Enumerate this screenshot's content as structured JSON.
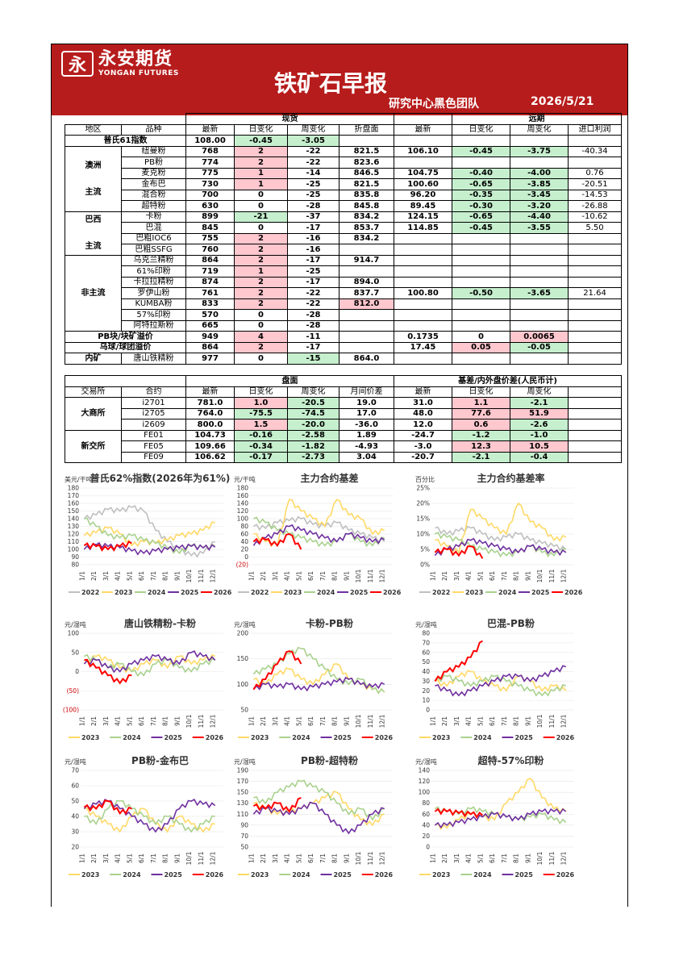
{
  "header": {
    "logo_mark": "永",
    "logo_cn": "永安期货",
    "logo_en": "YONGAN FUTURES",
    "title": "铁矿石早报",
    "team": "研究中心黑色团队",
    "date": "2026/5/21"
  },
  "spot": {
    "sec_spot": "现货",
    "sec_fwd": "远期",
    "headers": [
      "地区",
      "品种",
      "最新",
      "日变化",
      "周变化",
      "折盘面",
      "最新",
      "日变化",
      "周变化",
      "进口利润"
    ],
    "platts": {
      "label": "普氏61指数",
      "latest": "108.00",
      "d": "-0.45",
      "w": "-3.05"
    },
    "aus_label": "澳洲",
    "aus_label2": "主流",
    "brz_label": "巴西",
    "brz_label2": "主流",
    "non_label": "非主流",
    "aus": [
      [
        "纽曼粉",
        "768",
        "2",
        "-22",
        "821.5",
        "106.10",
        "-0.45",
        "-3.75",
        "-40.34"
      ],
      [
        "PB粉",
        "774",
        "2",
        "-22",
        "823.6",
        "",
        "",
        "",
        ""
      ],
      [
        "麦克粉",
        "775",
        "1",
        "-14",
        "846.5",
        "104.75",
        "-0.40",
        "-4.00",
        "0.76"
      ],
      [
        "金布巴",
        "730",
        "1",
        "-25",
        "821.5",
        "100.60",
        "-0.65",
        "-3.85",
        "-20.51"
      ],
      [
        "混合粉",
        "700",
        "0",
        "-25",
        "835.8",
        "96.20",
        "-0.35",
        "-3.45",
        "-14.53"
      ],
      [
        "超特粉",
        "630",
        "0",
        "-28",
        "845.8",
        "89.45",
        "-0.30",
        "-3.20",
        "-26.88"
      ]
    ],
    "brz": [
      [
        "卡粉",
        "899",
        "-21",
        "-37",
        "834.2",
        "124.15",
        "-0.65",
        "-4.40",
        "-10.62"
      ],
      [
        "巴混",
        "845",
        "0",
        "-17",
        "853.7",
        "114.85",
        "-0.45",
        "-3.55",
        "5.50"
      ],
      [
        "巴粗IOC6",
        "755",
        "2",
        "-16",
        "834.2",
        "",
        "",
        "",
        ""
      ],
      [
        "巴粗SSFG",
        "760",
        "2",
        "-16",
        "",
        "",
        "",
        "",
        ""
      ]
    ],
    "non": [
      [
        "乌克兰精粉",
        "864",
        "2",
        "-17",
        "914.7",
        "",
        "",
        "",
        ""
      ],
      [
        "61%印粉",
        "719",
        "1",
        "-25",
        "",
        "",
        "",
        "",
        ""
      ],
      [
        "卡拉拉精粉",
        "874",
        "2",
        "-17",
        "894.0",
        "",
        "",
        "",
        ""
      ],
      [
        "罗伊山粉",
        "761",
        "2",
        "-22",
        "837.7",
        "100.80",
        "-0.50",
        "-3.65",
        "21.64"
      ],
      [
        "KUMBA粉",
        "833",
        "2",
        "-22",
        "812.0",
        "",
        "",
        "",
        ""
      ],
      [
        "57%印粉",
        "570",
        "0",
        "-28",
        "",
        "",
        "",
        "",
        ""
      ],
      [
        "阿特拉斯粉",
        "665",
        "0",
        "-28",
        "",
        "",
        "",
        "",
        ""
      ]
    ],
    "premium1": {
      "label": "PB块/块矿溢价",
      "v": "949",
      "d": "4",
      "w": "-11",
      "f1": "0.1735",
      "f2": "0",
      "f3": "0.0065"
    },
    "premium2": {
      "label": "乌球/球团溢价",
      "v": "864",
      "d": "2",
      "w": "-17",
      "f1": "17.45",
      "f2": "0.05",
      "f3": "-0.05"
    },
    "domestic": {
      "label": "内矿",
      "name": "唐山铁精粉",
      "v": "977",
      "d": "0",
      "w": "-15",
      "f": "864.0"
    }
  },
  "futures": {
    "sec_disk": "盘面",
    "sec_basis": "基差/内外盘价差(人民币计)",
    "headers": [
      "交易所",
      "合约",
      "最新",
      "日变化",
      "周变化",
      "月间价差",
      "最新",
      "日变化",
      "周变化"
    ],
    "dce_label": "大商所",
    "sgx_label": "新交所",
    "dce": [
      [
        "i2701",
        "781.0",
        "1.0",
        "-20.5",
        "19.0",
        "31.0",
        "1.1",
        "-2.1"
      ],
      [
        "i2705",
        "764.0",
        "-75.5",
        "-74.5",
        "17.0",
        "48.0",
        "77.6",
        "51.9"
      ],
      [
        "i2609",
        "800.0",
        "1.5",
        "-20.0",
        "-36.0",
        "12.0",
        "0.6",
        "-2.6"
      ]
    ],
    "sgx": [
      [
        "FE01",
        "104.73",
        "-0.16",
        "-2.58",
        "1.89",
        "-24.7",
        "-1.2",
        "-1.0"
      ],
      [
        "FE05",
        "109.66",
        "-0.34",
        "-1.82",
        "-4.93",
        "-3.0",
        "12.3",
        "10.5"
      ],
      [
        "FE09",
        "106.62",
        "-0.17",
        "-2.73",
        "3.04",
        "-20.7",
        "-2.1",
        "-0.4"
      ]
    ]
  },
  "colors": {
    "2022": "#bfbfbf",
    "2023": "#ffd966",
    "2024": "#a9d18e",
    "2025": "#7030a0",
    "2026": "#ff0000"
  },
  "months": [
    "1/1",
    "2/1",
    "3/1",
    "4/1",
    "5/1",
    "6/1",
    "7/1",
    "8/1",
    "9/1",
    "10/1",
    "11/1",
    "12/1"
  ],
  "charts": [
    {
      "title": "普氏62%指数(2026年为61%)",
      "unit": "美元/干吨",
      "yticks": [
        "180",
        "170",
        "160",
        "150",
        "140",
        "130",
        "120",
        "110",
        "100",
        "90",
        "80"
      ],
      "ymin": 80,
      "ymax": 180,
      "legend": [
        "2022",
        "2023",
        "2024",
        "2025",
        "2026"
      ],
      "series": {
        "2022": [
          140,
          145,
          152,
          150,
          155,
          150,
          125,
          110,
          100,
          92,
          95,
          110
        ],
        "2023": [
          118,
          122,
          128,
          120,
          105,
          110,
          108,
          112,
          118,
          120,
          125,
          135
        ],
        "2024": [
          140,
          130,
          118,
          115,
          118,
          112,
          108,
          102,
          95,
          105,
          102,
          104
        ],
        "2025": [
          100,
          106,
          104,
          102,
          98,
          95,
          98,
          100,
          102,
          104,
          102,
          103
        ],
        "2026": [
          105,
          104,
          100,
          104,
          108
        ]
      }
    },
    {
      "title": "主力合约基差",
      "unit": "元/干吨",
      "yticks": [
        "180",
        "160",
        "140",
        "120",
        "100",
        "80",
        "60",
        "40",
        "20",
        "0",
        "(20)"
      ],
      "ymin": -20,
      "ymax": 180,
      "legend": [
        "2022",
        "2023",
        "2024",
        "2025",
        "2026"
      ],
      "series": {
        "2022": [
          80,
          75,
          90,
          95,
          100,
          85,
          80,
          90,
          70,
          60,
          50,
          40
        ],
        "2023": [
          60,
          40,
          30,
          150,
          120,
          100,
          80,
          150,
          110,
          100,
          60,
          70
        ],
        "2024": [
          100,
          90,
          70,
          60,
          50,
          40,
          30,
          40,
          60,
          40,
          30,
          50
        ],
        "2025": [
          30,
          50,
          60,
          80,
          70,
          60,
          50,
          40,
          60,
          50,
          40,
          45
        ],
        "2026": [
          40,
          45,
          30,
          60,
          20
        ]
      }
    },
    {
      "title": "主力合约基差率",
      "unit": "百分比",
      "yticks": [
        "25%",
        "20%",
        "15%",
        "10%",
        "5%",
        "0%"
      ],
      "ymin": 0,
      "ymax": 25,
      "legend": [
        "2022",
        "2023",
        "2024",
        "2025",
        "2026"
      ],
      "series": {
        "2022": [
          12,
          10,
          11,
          12,
          10,
          8,
          9,
          10,
          8,
          7,
          6,
          5
        ],
        "2023": [
          8,
          6,
          4,
          18,
          15,
          12,
          10,
          20,
          14,
          12,
          8,
          9
        ],
        "2024": [
          10,
          9,
          8,
          6,
          5,
          4,
          3,
          4,
          6,
          4,
          3,
          5
        ],
        "2025": [
          3,
          5,
          6,
          8,
          7,
          6,
          5,
          4,
          6,
          5,
          4,
          4
        ],
        "2026": [
          4,
          5,
          3,
          6,
          2
        ]
      }
    },
    {
      "title": "唐山铁精粉-卡粉",
      "unit": "元/湿吨",
      "yticks": [
        "100",
        "50",
        "0",
        "(50)",
        "(100)"
      ],
      "ymin": -100,
      "ymax": 100,
      "legend": [
        "2023",
        "2024",
        "2025",
        "2026"
      ],
      "series": {
        "2023": [
          20,
          40,
          30,
          10,
          0,
          20,
          30,
          10,
          40,
          20,
          30,
          40
        ],
        "2024": [
          40,
          30,
          10,
          20,
          0,
          -10,
          20,
          30,
          10,
          0,
          20,
          30
        ],
        "2025": [
          20,
          30,
          10,
          0,
          20,
          30,
          40,
          30,
          20,
          50,
          40,
          30
        ],
        "2026": [
          30,
          10,
          -10,
          -30,
          -10
        ]
      }
    },
    {
      "title": "卡粉-PB粉",
      "unit": "元/湿吨",
      "yticks": [
        "200",
        "150",
        "100",
        "50"
      ],
      "ymin": 50,
      "ymax": 200,
      "legend": [
        "2023",
        "2024",
        "2025",
        "2026"
      ],
      "series": {
        "2023": [
          110,
          100,
          120,
          130,
          110,
          100,
          120,
          140,
          110,
          100,
          90,
          85
        ],
        "2024": [
          120,
          130,
          140,
          160,
          170,
          150,
          130,
          110,
          100,
          110,
          90,
          85
        ],
        "2025": [
          90,
          100,
          95,
          100,
          90,
          95,
          100,
          105,
          110,
          100,
          95,
          100
        ],
        "2026": [
          90,
          110,
          140,
          165,
          140
        ]
      }
    },
    {
      "title": "巴混-PB粉",
      "unit": "元/湿吨",
      "yticks": [
        "80",
        "70",
        "60",
        "50",
        "40",
        "30",
        "20",
        "10",
        "0"
      ],
      "ymin": 0,
      "ymax": 80,
      "legend": [
        "2023",
        "2024",
        "2025",
        "2026"
      ],
      "series": {
        "2023": [
          30,
          25,
          35,
          40,
          30,
          25,
          20,
          35,
          30,
          20,
          25,
          20
        ],
        "2024": [
          30,
          35,
          30,
          25,
          30,
          35,
          30,
          25,
          20,
          15,
          20,
          25
        ],
        "2025": [
          25,
          20,
          15,
          20,
          25,
          30,
          35,
          35,
          30,
          35,
          40,
          45
        ],
        "2026": [
          30,
          40,
          45,
          55,
          72
        ]
      }
    },
    {
      "title": "PB粉-金布巴",
      "unit": "元/湿吨",
      "yticks": [
        "70",
        "60",
        "50",
        "40",
        "30",
        "20"
      ],
      "ymin": 20,
      "ymax": 70,
      "legend": [
        "2023",
        "2024",
        "2025",
        "2026"
      ],
      "series": {
        "2023": [
          45,
          40,
          35,
          30,
          40,
          45,
          35,
          30,
          40,
          35,
          30,
          35
        ],
        "2024": [
          40,
          35,
          45,
          50,
          45,
          40,
          35,
          40,
          35,
          30,
          35,
          40
        ],
        "2025": [
          45,
          48,
          50,
          45,
          40,
          35,
          30,
          35,
          45,
          50,
          48,
          47
        ],
        "2026": [
          46,
          45,
          50,
          42,
          45
        ]
      }
    },
    {
      "title": "PB粉-超特粉",
      "unit": "元/湿吨",
      "yticks": [
        "190",
        "170",
        "150",
        "130",
        "110",
        "90",
        "70",
        "50"
      ],
      "ymin": 50,
      "ymax": 190,
      "legend": [
        "2023",
        "2024",
        "2025",
        "2026"
      ],
      "series": {
        "2023": [
          130,
          120,
          110,
          115,
          120,
          130,
          140,
          150,
          120,
          100,
          90,
          110
        ],
        "2024": [
          140,
          130,
          150,
          160,
          170,
          160,
          150,
          130,
          110,
          120,
          100,
          120
        ],
        "2025": [
          110,
          120,
          115,
          110,
          120,
          130,
          110,
          90,
          75,
          90,
          110,
          120
        ],
        "2026": [
          125,
          120,
          130,
          115,
          140
        ]
      }
    },
    {
      "title": "超特-57%印粉",
      "unit": "元/湿吨",
      "yticks": [
        "140",
        "120",
        "100",
        "80",
        "60",
        "40",
        "20",
        "0"
      ],
      "ymin": 0,
      "ymax": 140,
      "legend": [
        "2023",
        "2024",
        "2025",
        "2026"
      ],
      "series": {
        "2023": [
          40,
          35,
          50,
          60,
          55,
          50,
          80,
          100,
          125,
          90,
          70,
          65
        ],
        "2024": [
          70,
          65,
          60,
          70,
          65,
          60,
          55,
          50,
          55,
          60,
          50,
          45
        ],
        "2025": [
          40,
          40,
          45,
          50,
          55,
          60,
          55,
          50,
          60,
          65,
          65,
          65
        ],
        "2026": [
          65,
          65,
          62,
          60,
          58
        ]
      }
    }
  ]
}
